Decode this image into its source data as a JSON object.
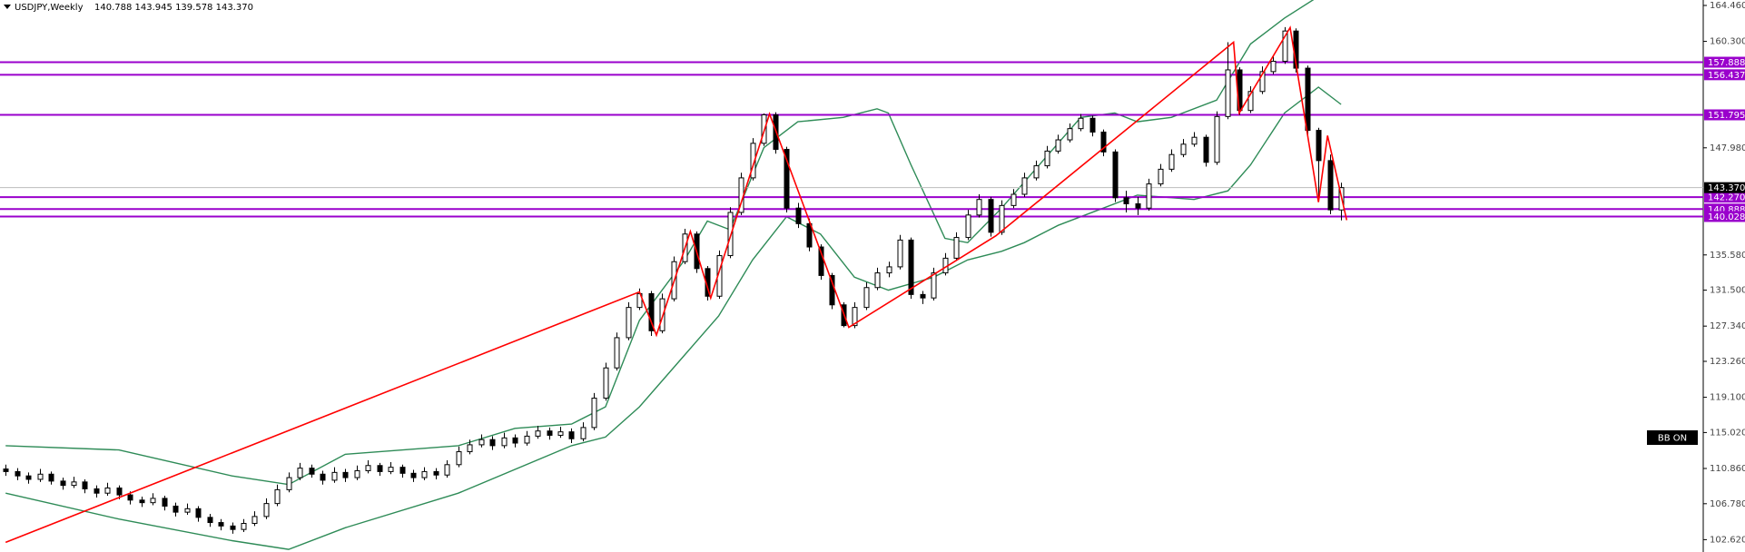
{
  "chart_data": {
    "type": "candlestick",
    "title": "USDJPY,Weekly",
    "header_values": "140.788 143.945 139.578 143.370",
    "indicator_label": "BB ON",
    "xlim": [
      -0.5,
      150
    ],
    "ylim": [
      101.19,
      165.09
    ],
    "yticks": [
      {
        "value": 164.46,
        "label": "164.460"
      },
      {
        "value": 160.3,
        "label": "160.300"
      },
      {
        "value": 147.98,
        "label": "147.980"
      },
      {
        "value": 135.58,
        "label": "135.580"
      },
      {
        "value": 131.5,
        "label": "131.500"
      },
      {
        "value": 127.34,
        "label": "127.340"
      },
      {
        "value": 123.26,
        "label": "123.260"
      },
      {
        "value": 119.1,
        "label": "119.100"
      },
      {
        "value": 115.02,
        "label": "115.020"
      },
      {
        "value": 110.86,
        "label": "110.860"
      },
      {
        "value": 106.78,
        "label": "106.780"
      },
      {
        "value": 102.62,
        "label": "102.620"
      }
    ],
    "level_color": "#9a00cc",
    "levels": [
      {
        "value": 157.888,
        "label": "157.888"
      },
      {
        "value": 156.437,
        "label": "156.437"
      },
      {
        "value": 151.795,
        "label": "151.795"
      },
      {
        "value": 142.27,
        "label": "142.270"
      },
      {
        "value": 140.888,
        "label": "140.888"
      },
      {
        "value": 140.028,
        "label": "140.028"
      }
    ],
    "current_price": {
      "value": 143.37,
      "label": "143.370"
    },
    "candles": [
      [
        110.8,
        111.3,
        110.0,
        110.5
      ],
      [
        110.5,
        110.9,
        109.5,
        110.0
      ],
      [
        110.0,
        110.4,
        109.1,
        109.6
      ],
      [
        109.6,
        110.8,
        109.3,
        110.2
      ],
      [
        110.2,
        110.5,
        109.0,
        109.4
      ],
      [
        109.4,
        109.8,
        108.4,
        108.9
      ],
      [
        108.9,
        109.9,
        108.6,
        109.3
      ],
      [
        109.3,
        109.6,
        108.0,
        108.5
      ],
      [
        108.5,
        108.9,
        107.5,
        108.0
      ],
      [
        108.0,
        109.2,
        107.7,
        108.6
      ],
      [
        108.6,
        108.9,
        107.3,
        107.8
      ],
      [
        107.8,
        108.2,
        106.7,
        107.2
      ],
      [
        107.2,
        107.6,
        106.4,
        106.9
      ],
      [
        106.9,
        108.0,
        106.6,
        107.4
      ],
      [
        107.4,
        107.7,
        106.0,
        106.5
      ],
      [
        106.5,
        106.9,
        105.3,
        105.8
      ],
      [
        105.8,
        106.8,
        105.5,
        106.2
      ],
      [
        106.2,
        106.5,
        104.7,
        105.2
      ],
      [
        105.2,
        105.6,
        104.1,
        104.6
      ],
      [
        104.6,
        105.0,
        103.7,
        104.2
      ],
      [
        104.2,
        104.6,
        103.3,
        103.8
      ],
      [
        103.8,
        105.0,
        103.5,
        104.5
      ],
      [
        104.5,
        105.9,
        104.2,
        105.3
      ],
      [
        105.3,
        107.4,
        105.0,
        106.8
      ],
      [
        106.8,
        109.0,
        106.5,
        108.4
      ],
      [
        108.4,
        110.4,
        108.1,
        109.8
      ],
      [
        109.8,
        111.5,
        109.5,
        110.9
      ],
      [
        110.9,
        111.3,
        109.8,
        110.2
      ],
      [
        110.2,
        110.6,
        109.0,
        109.5
      ],
      [
        109.5,
        111.0,
        109.2,
        110.4
      ],
      [
        110.4,
        110.8,
        109.3,
        109.8
      ],
      [
        109.8,
        111.2,
        109.5,
        110.6
      ],
      [
        110.6,
        111.8,
        110.3,
        111.2
      ],
      [
        111.2,
        111.5,
        110.0,
        110.5
      ],
      [
        110.5,
        111.6,
        110.2,
        111.0
      ],
      [
        111.0,
        111.3,
        109.8,
        110.3
      ],
      [
        110.3,
        110.7,
        109.3,
        109.8
      ],
      [
        109.8,
        111.0,
        109.5,
        110.5
      ],
      [
        110.5,
        110.9,
        109.6,
        110.1
      ],
      [
        110.1,
        111.8,
        109.8,
        111.3
      ],
      [
        111.3,
        113.4,
        111.0,
        112.8
      ],
      [
        112.8,
        114.2,
        112.5,
        113.6
      ],
      [
        113.6,
        114.8,
        113.3,
        114.2
      ],
      [
        114.2,
        114.6,
        113.0,
        113.5
      ],
      [
        113.5,
        115.0,
        113.2,
        114.4
      ],
      [
        114.4,
        114.8,
        113.3,
        113.8
      ],
      [
        113.8,
        115.2,
        113.5,
        114.6
      ],
      [
        114.6,
        115.8,
        114.3,
        115.2
      ],
      [
        115.2,
        115.6,
        114.2,
        114.7
      ],
      [
        114.7,
        115.7,
        114.4,
        115.1
      ],
      [
        115.1,
        115.5,
        113.8,
        114.3
      ],
      [
        114.3,
        116.2,
        114.0,
        115.6
      ],
      [
        115.6,
        119.6,
        115.3,
        119.0
      ],
      [
        119.0,
        123.1,
        118.7,
        122.5
      ],
      [
        122.5,
        126.6,
        122.2,
        126.0
      ],
      [
        126.0,
        130.1,
        125.7,
        129.5
      ],
      [
        129.5,
        131.7,
        129.2,
        131.1
      ],
      [
        131.1,
        131.4,
        126.2,
        126.8
      ],
      [
        126.8,
        131.1,
        126.5,
        130.5
      ],
      [
        130.5,
        135.4,
        130.2,
        134.8
      ],
      [
        134.8,
        138.6,
        134.5,
        138.0
      ],
      [
        138.0,
        138.3,
        133.5,
        134.0
      ],
      [
        134.0,
        134.3,
        130.3,
        130.8
      ],
      [
        130.8,
        136.1,
        130.5,
        135.5
      ],
      [
        135.5,
        141.1,
        135.2,
        140.5
      ],
      [
        140.5,
        145.1,
        140.2,
        144.5
      ],
      [
        144.5,
        149.1,
        144.2,
        148.5
      ],
      [
        148.5,
        151.95,
        148.2,
        151.8
      ],
      [
        151.8,
        152.1,
        147.3,
        147.8
      ],
      [
        147.8,
        148.1,
        140.5,
        141.0
      ],
      [
        141.0,
        141.6,
        138.7,
        139.2
      ],
      [
        139.2,
        139.8,
        136.0,
        136.5
      ],
      [
        136.5,
        136.8,
        132.7,
        133.2
      ],
      [
        133.2,
        133.5,
        129.3,
        129.8
      ],
      [
        129.8,
        130.1,
        127.2,
        127.4
      ],
      [
        127.4,
        130.1,
        127.1,
        129.5
      ],
      [
        129.5,
        132.4,
        129.2,
        131.8
      ],
      [
        131.8,
        134.1,
        131.5,
        133.5
      ],
      [
        133.5,
        134.8,
        133.0,
        134.2
      ],
      [
        134.2,
        137.9,
        133.9,
        137.3
      ],
      [
        137.3,
        137.6,
        130.5,
        131.0
      ],
      [
        131.0,
        131.4,
        129.9,
        130.6
      ],
      [
        130.6,
        134.1,
        130.3,
        133.5
      ],
      [
        133.5,
        135.8,
        133.2,
        135.2
      ],
      [
        135.2,
        138.2,
        134.9,
        137.6
      ],
      [
        137.6,
        140.8,
        137.3,
        140.2
      ],
      [
        140.2,
        142.6,
        139.9,
        142.0
      ],
      [
        142.0,
        142.3,
        137.7,
        138.2
      ],
      [
        138.2,
        141.9,
        137.9,
        141.3
      ],
      [
        141.3,
        143.2,
        141.0,
        142.6
      ],
      [
        142.6,
        145.1,
        142.3,
        144.5
      ],
      [
        144.5,
        146.5,
        144.2,
        145.9
      ],
      [
        145.9,
        148.2,
        145.6,
        147.6
      ],
      [
        147.6,
        149.5,
        147.3,
        148.9
      ],
      [
        148.9,
        150.8,
        148.6,
        150.2
      ],
      [
        150.2,
        151.9,
        149.9,
        151.4
      ],
      [
        151.4,
        151.7,
        149.3,
        149.8
      ],
      [
        149.8,
        150.1,
        147.0,
        147.5
      ],
      [
        147.5,
        147.8,
        141.7,
        142.2
      ],
      [
        142.2,
        143.0,
        140.5,
        141.5
      ],
      [
        141.5,
        142.3,
        140.2,
        141.0
      ],
      [
        141.0,
        144.4,
        140.7,
        143.8
      ],
      [
        143.8,
        146.1,
        143.5,
        145.5
      ],
      [
        145.5,
        147.8,
        145.2,
        147.2
      ],
      [
        147.2,
        149.0,
        146.9,
        148.4
      ],
      [
        148.4,
        149.8,
        148.1,
        149.2
      ],
      [
        149.2,
        149.5,
        145.8,
        146.3
      ],
      [
        146.3,
        152.2,
        146.0,
        151.6
      ],
      [
        151.6,
        160.2,
        151.3,
        157.0
      ],
      [
        157.0,
        157.3,
        151.8,
        152.3
      ],
      [
        152.3,
        155.1,
        152.0,
        154.5
      ],
      [
        154.5,
        157.4,
        154.2,
        156.8
      ],
      [
        156.8,
        158.6,
        156.5,
        158.0
      ],
      [
        158.0,
        161.95,
        157.7,
        161.5
      ],
      [
        161.5,
        161.8,
        156.7,
        157.2
      ],
      [
        157.2,
        157.5,
        149.5,
        150.0
      ],
      [
        150.0,
        150.3,
        141.7,
        146.5
      ],
      [
        146.5,
        147.2,
        140.3,
        140.8
      ],
      [
        140.788,
        143.945,
        139.578,
        143.37
      ]
    ],
    "band_color": "#2e8b57",
    "bands": [
      {
        "x": [
          0,
          10,
          20,
          25,
          30,
          40,
          45,
          50,
          53,
          56,
          60,
          62,
          64,
          67,
          70,
          74,
          77,
          78,
          80,
          83,
          85,
          88,
          92,
          95,
          98,
          100,
          103,
          107,
          110,
          113,
          116,
          118
        ],
        "values": [
          113.5,
          113,
          110,
          109,
          112.5,
          113.5,
          115.5,
          116,
          118,
          128,
          135,
          139.5,
          138.5,
          148,
          151,
          151.5,
          152.5,
          152,
          146,
          137.5,
          137,
          141,
          147,
          151.5,
          152,
          151,
          151.5,
          153.5,
          160,
          163,
          165.5,
          166.5
        ]
      },
      {
        "x": [
          0,
          10,
          20,
          25,
          30,
          40,
          50,
          53,
          56,
          60,
          63,
          66,
          69,
          72,
          75,
          78,
          82,
          85,
          88,
          90,
          93,
          97,
          100,
          105,
          108,
          110,
          113,
          116,
          118
        ],
        "values": [
          108,
          105,
          102.5,
          101.5,
          104,
          108,
          113.5,
          114.5,
          118,
          124,
          128.5,
          135,
          140,
          138,
          133,
          131.5,
          133,
          135,
          136,
          137,
          139,
          141,
          142.5,
          142,
          143,
          146,
          152,
          155,
          153
        ]
      }
    ],
    "zigzag_color": "#ff0000",
    "zigzag": {
      "x": [
        0,
        56,
        57.5,
        60.5,
        62.3,
        67.5,
        74.5,
        87.5,
        108.5,
        109,
        113.5,
        116,
        116.8,
        118.5
      ],
      "values": [
        102.3,
        131.3,
        126.3,
        138.3,
        130.6,
        151.9,
        127.2,
        137.8,
        160.2,
        152,
        161.9,
        141.7,
        149.4,
        139.6
      ]
    }
  }
}
